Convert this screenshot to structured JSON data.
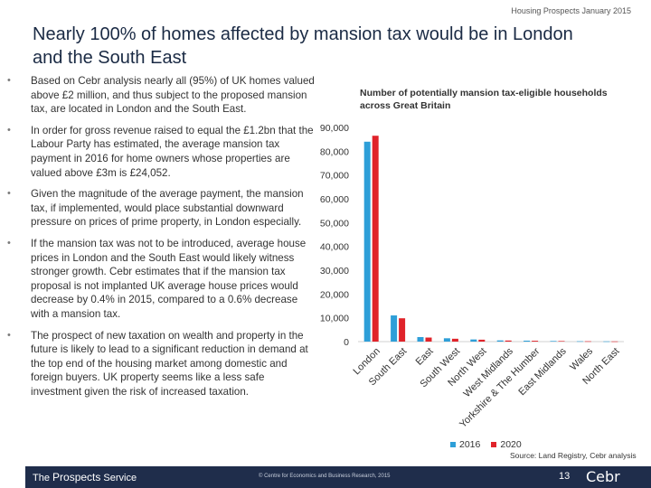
{
  "header": {
    "note": "Housing Prospects January 2015",
    "title": "Nearly 100% of homes affected by mansion tax would be in London and the South East"
  },
  "bullets": [
    "Based on Cebr analysis nearly all (95%) of UK homes valued above £2 million, and thus subject to the proposed mansion tax, are located in London and the South East.",
    "In order for gross revenue raised to equal the £1.2bn that the Labour Party has estimated, the average mansion tax payment in 2016 for home owners whose properties are valued above £3m is £24,052.",
    "Given the magnitude of the average payment, the mansion tax, if implemented, would place substantial downward pressure on prices of prime property, in London especially.",
    "If the mansion tax was not to be introduced, average house prices in London and the South East would likely witness stronger growth. Cebr estimates that if the mansion tax proposal is not implanted UK average house prices would decrease by 0.4% in 2015, compared to a 0.6% decrease with a mansion tax.",
    "The prospect of new taxation on wealth and property in the future is likely to lead to a significant reduction in demand at the top end of the housing market among domestic and foreign buyers. UK property seems like a less safe investment given the risk of increased taxation."
  ],
  "chart_data": {
    "type": "bar",
    "title": "Number of potentially mansion tax-eligible households across Great Britain",
    "categories": [
      "London",
      "South East",
      "East",
      "South West",
      "North West",
      "West Midlands",
      "Yorkshire & The Humber",
      "East Midlands",
      "Wales",
      "North East"
    ],
    "series": [
      {
        "name": "2016",
        "color": "#2e9fd8",
        "values": [
          84000,
          11000,
          1900,
          1400,
          900,
          500,
          400,
          250,
          150,
          100
        ]
      },
      {
        "name": "2020",
        "color": "#e0232a",
        "values": [
          86500,
          9800,
          1700,
          1200,
          800,
          450,
          350,
          230,
          140,
          90
        ]
      }
    ],
    "y_ticks": [
      "0",
      "10,000",
      "20,000",
      "30,000",
      "40,000",
      "50,000",
      "60,000",
      "70,000",
      "80,000",
      "90,000"
    ],
    "ylim": [
      0,
      90000
    ],
    "xlabel": "",
    "ylabel": "",
    "legend_position": "bottom",
    "grid": false
  },
  "source": "Source: Land Registry, Cebr analysis",
  "footer": {
    "brand_prefix": "The ",
    "brand_main": "Prospects",
    "brand_suffix": " Service",
    "copyright": "© Centre for Economics and Business Research, 2015",
    "page_number": "13",
    "logo": "Cebr"
  }
}
